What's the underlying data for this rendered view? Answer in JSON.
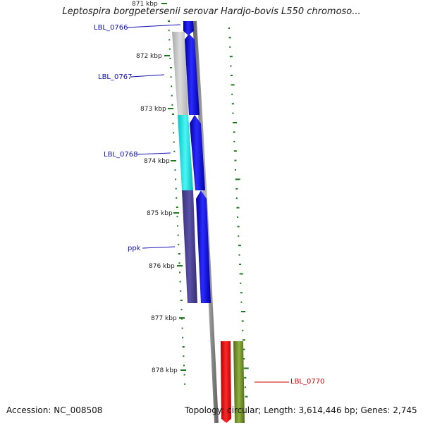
{
  "title": "Leptospira borgpetersenii serovar Hardjo-bovis L550 chromoso...",
  "footer": {
    "accession": "Accession: NC_008508",
    "topology": "Topology: circular; Length: 3,614,446 bp; Genes: 2,745"
  },
  "ticks": [
    {
      "label": "871 kbp"
    },
    {
      "label": "872 kbp"
    },
    {
      "label": "873 kbp"
    },
    {
      "label": "874 kbp"
    },
    {
      "label": "875 kbp"
    },
    {
      "label": "876 kbp"
    },
    {
      "label": "877 kbp"
    },
    {
      "label": "878 kbp"
    }
  ],
  "gene_labels": [
    {
      "name": "LBL_0766",
      "color": "#1010b0"
    },
    {
      "name": "LBL_0767",
      "color": "#1010b0"
    },
    {
      "name": "LBL_0768",
      "color": "#1010b0"
    },
    {
      "name": "ppk",
      "color": "#1010b0"
    },
    {
      "name": "LBL_0770",
      "color": "#cc0000"
    }
  ],
  "colors": {
    "blue_gene": "#0000ee",
    "gray_block": "#c8c8c8",
    "cyan_block": "#00e5e5",
    "purple_block": "#4b4090",
    "red_gene": "#ee0000",
    "olive_gene": "#6b8e23",
    "tick_green": "#1a7a1a"
  }
}
